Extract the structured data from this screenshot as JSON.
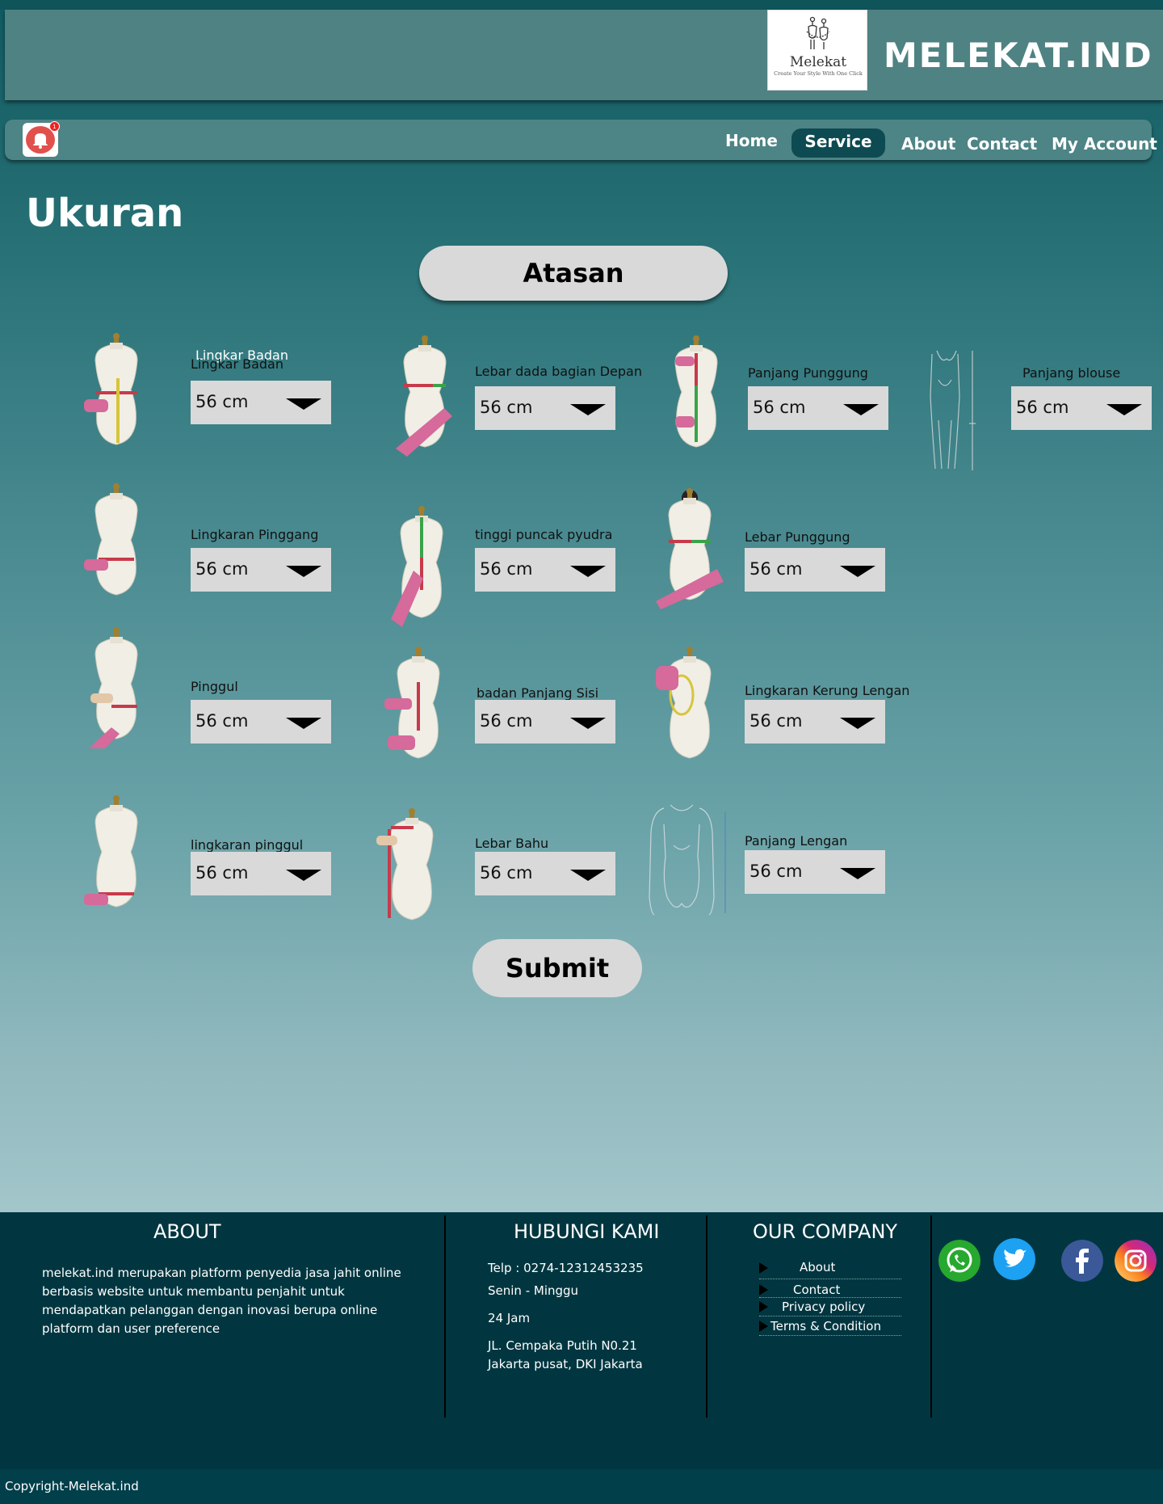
{
  "header": {
    "logo_name": "Melekat",
    "logo_tagline": "Create Your Style With One Click",
    "brand": "MELEKAT.IND"
  },
  "nav": {
    "notification_count": "1",
    "items": [
      "Home",
      "Service",
      "About",
      "Contact",
      "My Account"
    ],
    "active": "Service"
  },
  "page": {
    "title": "Ukuran",
    "category_button": "Atasan",
    "submit_label": "Submit",
    "overlay_label": "Lingkar Badan"
  },
  "measurements": [
    {
      "label": "Lingkar Badan",
      "value": "56 cm"
    },
    {
      "label": "Lebar dada bagian Depan",
      "value": "56 cm"
    },
    {
      "label": "Panjang Punggung",
      "value": "56 cm"
    },
    {
      "label": "Panjang blouse",
      "value": "56 cm"
    },
    {
      "label": "Lingkaran Pinggang",
      "value": "56 cm"
    },
    {
      "label": "tinggi puncak pyudra",
      "value": "56 cm"
    },
    {
      "label": "Lebar Punggung",
      "value": "56 cm"
    },
    {
      "label": "Pinggul",
      "value": "56 cm"
    },
    {
      "label": "badan Panjang Sisi",
      "value": "56 cm"
    },
    {
      "label": "Lingkaran Kerung Lengan",
      "value": "56 cm"
    },
    {
      "label": "lingkaran pinggul",
      "value": "56 cm"
    },
    {
      "label": "Lebar Bahu",
      "value": "56 cm"
    },
    {
      "label": "Panjang Lengan",
      "value": "56 cm"
    }
  ],
  "footer": {
    "about": {
      "heading": "ABOUT",
      "lines": [
        "melekat.ind merupakan platform penyedia jasa jahit online",
        "berbasis website untuk membantu penjahit untuk",
        "mendapatkan pelanggan dengan inovasi berupa online",
        "platform dan user preference"
      ]
    },
    "contact": {
      "heading": "HUBUNGI KAMI",
      "phone": "Telp  :  0274-12312453235",
      "days": "Senin - Minggu",
      "hours": "24 Jam",
      "address_1": "JL. Cempaka Putih N0.21",
      "address_2": "Jakarta pusat, DKI Jakarta"
    },
    "company": {
      "heading": "OUR COMPANY",
      "links": [
        "About",
        "Contact",
        "Privacy policy",
        "Terms & Condition"
      ]
    },
    "social": [
      "whatsapp-icon",
      "twitter-icon",
      "facebook-icon",
      "instagram-icon"
    ],
    "copyright": "Copyright-Melekat.ind"
  },
  "colors": {
    "header_bg": "#4f8283",
    "nav_active": "#0d4a52",
    "footer_bg": "#013640",
    "field_bg": "#d9d9d9"
  }
}
